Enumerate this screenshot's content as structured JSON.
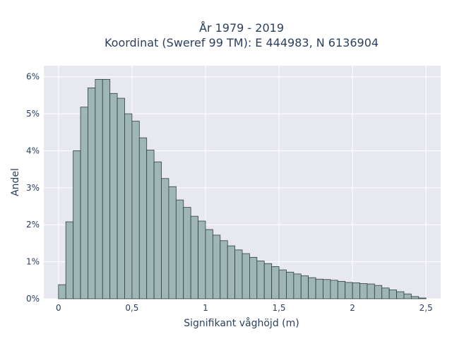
{
  "chart_data": {
    "type": "bar",
    "title_line1": "År 1979 - 2019",
    "title_line2": "Koordinat (Sweref 99 TM): E 444983, N 6136904",
    "xlabel": "Signifikant våghöjd (m)",
    "ylabel": "Andel",
    "xlim": [
      -0.1,
      2.6
    ],
    "ylim": [
      0,
      6.3
    ],
    "grid": true,
    "x_ticks": [
      {
        "value": 0,
        "label": "0"
      },
      {
        "value": 0.5,
        "label": "0,5"
      },
      {
        "value": 1,
        "label": "1"
      },
      {
        "value": 1.5,
        "label": "1,5"
      },
      {
        "value": 2,
        "label": "2"
      },
      {
        "value": 2.5,
        "label": "2,5"
      }
    ],
    "y_ticks": [
      {
        "value": 0,
        "label": "0%"
      },
      {
        "value": 1,
        "label": "1%"
      },
      {
        "value": 2,
        "label": "2%"
      },
      {
        "value": 3,
        "label": "3%"
      },
      {
        "value": 4,
        "label": "4%"
      },
      {
        "value": 5,
        "label": "5%"
      },
      {
        "value": 6,
        "label": "6%"
      }
    ],
    "bin_width": 0.05,
    "bin_starts": [
      0,
      0.05,
      0.1,
      0.15,
      0.2,
      0.25,
      0.3,
      0.35,
      0.4,
      0.45,
      0.5,
      0.55,
      0.6,
      0.65,
      0.7,
      0.75,
      0.8,
      0.85,
      0.9,
      0.95,
      1.0,
      1.05,
      1.1,
      1.15,
      1.2,
      1.25,
      1.3,
      1.35,
      1.4,
      1.45,
      1.5,
      1.55,
      1.6,
      1.65,
      1.7,
      1.75,
      1.8,
      1.85,
      1.9,
      1.95,
      2.0,
      2.05,
      2.1,
      2.15,
      2.2,
      2.25,
      2.3,
      2.35,
      2.4,
      2.45
    ],
    "values": [
      0.38,
      2.08,
      4.0,
      5.18,
      5.7,
      5.93,
      5.93,
      5.55,
      5.42,
      5.0,
      4.8,
      4.35,
      4.02,
      3.7,
      3.25,
      3.03,
      2.67,
      2.47,
      2.23,
      2.1,
      1.87,
      1.72,
      1.57,
      1.43,
      1.32,
      1.22,
      1.12,
      1.02,
      0.95,
      0.87,
      0.78,
      0.72,
      0.67,
      0.62,
      0.57,
      0.53,
      0.52,
      0.5,
      0.47,
      0.44,
      0.43,
      0.41,
      0.4,
      0.36,
      0.29,
      0.24,
      0.19,
      0.13,
      0.06,
      0.02
    ],
    "colors": {
      "bar_fill": "#9eb6b5",
      "bar_stroke": "#2f3f3e",
      "plot_bg": "#e8e8f0",
      "grid": "#ffffff",
      "text": "#2a3f5f"
    }
  }
}
